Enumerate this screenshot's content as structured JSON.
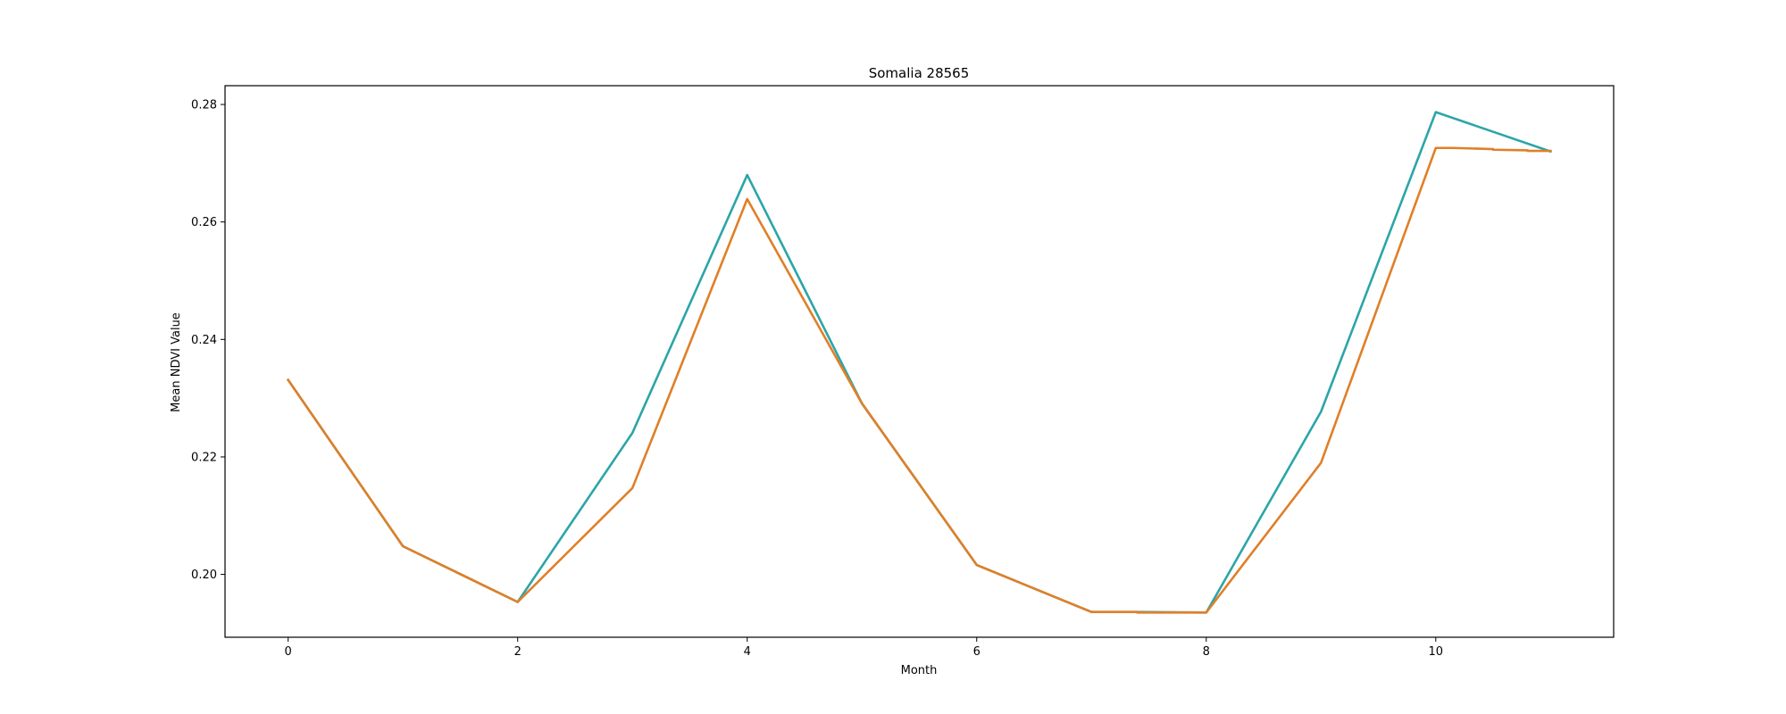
{
  "chart_data": {
    "type": "line",
    "title": "Somalia 28565",
    "xlabel": "Month",
    "ylabel": "Mean NDVI Value",
    "xlim": [
      -0.55,
      11.55
    ],
    "ylim": [
      0.1893,
      0.2832
    ],
    "xticks": [
      0,
      2,
      4,
      6,
      8,
      10
    ],
    "xtick_labels": [
      "0",
      "2",
      "4",
      "6",
      "8",
      "10"
    ],
    "yticks": [
      0.2,
      0.22,
      0.24,
      0.26,
      0.28
    ],
    "ytick_labels": [
      "0.20",
      "0.22",
      "0.24",
      "0.26",
      "0.28"
    ],
    "grid": false,
    "series": [
      {
        "color": "#2ca5a8",
        "x": [
          0,
          1,
          2,
          3,
          4,
          5,
          6,
          7,
          7.4,
          8,
          9,
          10,
          11
        ],
        "y": [
          0.2331,
          0.2048,
          0.1953,
          0.2241,
          0.268,
          0.2291,
          0.2016,
          0.1936,
          0.1936,
          0.1935,
          0.2277,
          0.2787,
          0.272
        ]
      },
      {
        "color": "#e07f28",
        "x": [
          0,
          1,
          2,
          3,
          4,
          5,
          6,
          7,
          7.4,
          7.4,
          8,
          9,
          10,
          10.15,
          10.5,
          10.5,
          10.8,
          10.8,
          11
        ],
        "y": [
          0.2331,
          0.2048,
          0.1953,
          0.2147,
          0.2639,
          0.2291,
          0.2016,
          0.1936,
          0.1936,
          0.1935,
          0.1935,
          0.219,
          0.2726,
          0.2726,
          0.2724,
          0.2723,
          0.2722,
          0.2721,
          0.2721
        ]
      }
    ]
  }
}
